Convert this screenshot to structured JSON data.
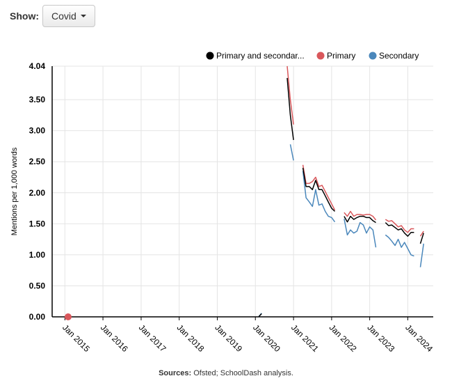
{
  "controls": {
    "show_label": "Show:",
    "dropdown_value": "Covid"
  },
  "sources": {
    "label": "Sources:",
    "text": "Ofsted; SchoolDash analysis."
  },
  "colors": {
    "all": "#000000",
    "primary": "#d9575b",
    "secondary": "#4a87bb",
    "grid": "#e4e4e4",
    "axis": "#000000"
  },
  "chart_data": {
    "type": "line",
    "title": "",
    "xlabel": "",
    "ylabel": "Mentions per 1,000 words",
    "ylim": [
      0,
      4.04
    ],
    "yticks": [
      "0.00",
      "0.50",
      "1.00",
      "1.50",
      "2.00",
      "2.50",
      "3.00",
      "3.50",
      "4.04"
    ],
    "xlim": [
      "2014-09-01",
      "2024-09-01"
    ],
    "xticks": [
      "Jan 2015",
      "Jan 2016",
      "Jan 2017",
      "Jan 2018",
      "Jan 2019",
      "Jan 2020",
      "Jan 2021",
      "Jan 2022",
      "Jan 2023",
      "Jan 2024"
    ],
    "legend_position": "top-right",
    "grid": true,
    "series": [
      {
        "name": "Primary and secondar...",
        "key": "all",
        "segments": [
          [
            [
              "2020-02-01",
              0.0
            ],
            [
              "2020-03-01",
              0.05
            ]
          ],
          [
            [
              "2020-11-01",
              3.85
            ],
            [
              "2020-12-01",
              3.25
            ],
            [
              "2021-01-01",
              2.85
            ]
          ],
          [
            [
              "2021-04-01",
              2.4
            ],
            [
              "2021-05-01",
              2.1
            ],
            [
              "2021-06-01",
              2.1
            ],
            [
              "2021-07-01",
              2.05
            ],
            [
              "2021-08-01",
              2.2
            ],
            [
              "2021-09-01",
              2.05
            ],
            [
              "2021-10-01",
              2.05
            ],
            [
              "2021-11-01",
              1.95
            ],
            [
              "2021-12-01",
              1.85
            ],
            [
              "2022-01-01",
              1.75
            ],
            [
              "2022-02-01",
              1.7
            ]
          ],
          [
            [
              "2022-05-01",
              1.62
            ],
            [
              "2022-06-01",
              1.53
            ],
            [
              "2022-07-01",
              1.62
            ],
            [
              "2022-08-01",
              1.57
            ],
            [
              "2022-09-01",
              1.6
            ],
            [
              "2022-10-01",
              1.62
            ],
            [
              "2022-11-01",
              1.62
            ],
            [
              "2022-12-01",
              1.6
            ],
            [
              "2023-01-01",
              1.6
            ],
            [
              "2023-02-01",
              1.55
            ],
            [
              "2023-03-01",
              1.52
            ]
          ],
          [
            [
              "2023-06-01",
              1.52
            ],
            [
              "2023-07-01",
              1.47
            ],
            [
              "2023-08-01",
              1.48
            ],
            [
              "2023-09-01",
              1.44
            ],
            [
              "2023-10-01",
              1.4
            ],
            [
              "2023-11-01",
              1.42
            ],
            [
              "2023-12-01",
              1.35
            ],
            [
              "2024-01-01",
              1.3
            ],
            [
              "2024-02-01",
              1.36
            ],
            [
              "2024-03-01",
              1.36
            ]
          ],
          [
            [
              "2024-05-01",
              1.18
            ],
            [
              "2024-06-01",
              1.35
            ]
          ]
        ]
      },
      {
        "name": "Primary",
        "key": "primary",
        "segments": [
          [
            [
              "2015-02-01",
              0.0
            ],
            [
              "2015-03-01",
              0.0
            ]
          ],
          [
            [
              "2020-11-01",
              4.04
            ],
            [
              "2020-12-01",
              3.5
            ],
            [
              "2021-01-01",
              3.1
            ]
          ],
          [
            [
              "2021-04-01",
              2.45
            ],
            [
              "2021-05-01",
              2.15
            ],
            [
              "2021-06-01",
              2.15
            ],
            [
              "2021-07-01",
              2.18
            ],
            [
              "2021-08-01",
              2.25
            ],
            [
              "2021-09-01",
              2.1
            ],
            [
              "2021-10-01",
              2.12
            ],
            [
              "2021-11-01",
              2.02
            ],
            [
              "2021-12-01",
              1.92
            ],
            [
              "2022-01-01",
              1.82
            ],
            [
              "2022-02-01",
              1.72
            ]
          ],
          [
            [
              "2022-05-01",
              1.68
            ],
            [
              "2022-06-01",
              1.62
            ],
            [
              "2022-07-01",
              1.7
            ],
            [
              "2022-08-01",
              1.62
            ],
            [
              "2022-09-01",
              1.65
            ],
            [
              "2022-10-01",
              1.65
            ],
            [
              "2022-11-01",
              1.64
            ],
            [
              "2022-12-01",
              1.65
            ],
            [
              "2023-01-01",
              1.65
            ],
            [
              "2023-02-01",
              1.62
            ],
            [
              "2023-03-01",
              1.56
            ]
          ],
          [
            [
              "2023-06-01",
              1.57
            ],
            [
              "2023-07-01",
              1.54
            ],
            [
              "2023-08-01",
              1.55
            ],
            [
              "2023-09-01",
              1.5
            ],
            [
              "2023-10-01",
              1.45
            ],
            [
              "2023-11-01",
              1.47
            ],
            [
              "2023-12-01",
              1.4
            ],
            [
              "2024-01-01",
              1.36
            ],
            [
              "2024-02-01",
              1.42
            ],
            [
              "2024-03-01",
              1.42
            ]
          ],
          [
            [
              "2024-05-01",
              1.3
            ],
            [
              "2024-06-01",
              1.38
            ]
          ]
        ],
        "markers": [
          [
            "2015-02-01",
            0.0
          ]
        ]
      },
      {
        "name": "Secondary",
        "key": "secondary",
        "segments": [
          [
            [
              "2020-02-01",
              0.0
            ],
            [
              "2020-03-01",
              0.06
            ]
          ],
          [
            [
              "2020-12-01",
              2.78
            ],
            [
              "2021-01-01",
              2.52
            ]
          ],
          [
            [
              "2021-04-01",
              2.35
            ],
            [
              "2021-05-01",
              1.92
            ],
            [
              "2021-06-01",
              1.85
            ],
            [
              "2021-07-01",
              1.78
            ],
            [
              "2021-08-01",
              2.05
            ],
            [
              "2021-09-01",
              1.8
            ],
            [
              "2021-10-01",
              1.82
            ],
            [
              "2021-11-01",
              1.7
            ],
            [
              "2021-12-01",
              1.62
            ],
            [
              "2022-01-01",
              1.6
            ],
            [
              "2022-02-01",
              1.53
            ]
          ],
          [
            [
              "2022-05-01",
              1.58
            ],
            [
              "2022-06-01",
              1.32
            ],
            [
              "2022-07-01",
              1.4
            ],
            [
              "2022-08-01",
              1.35
            ],
            [
              "2022-09-01",
              1.38
            ],
            [
              "2022-10-01",
              1.52
            ],
            [
              "2022-11-01",
              1.48
            ],
            [
              "2022-12-01",
              1.35
            ],
            [
              "2023-01-01",
              1.45
            ],
            [
              "2023-02-01",
              1.4
            ],
            [
              "2023-03-01",
              1.12
            ]
          ],
          [
            [
              "2023-06-01",
              1.32
            ],
            [
              "2023-07-01",
              1.28
            ],
            [
              "2023-08-01",
              1.22
            ],
            [
              "2023-09-01",
              1.15
            ],
            [
              "2023-10-01",
              1.25
            ],
            [
              "2023-11-01",
              1.12
            ],
            [
              "2023-12-01",
              1.2
            ],
            [
              "2024-01-01",
              1.1
            ],
            [
              "2024-02-01",
              1.0
            ],
            [
              "2024-03-01",
              0.98
            ]
          ],
          [
            [
              "2024-05-01",
              0.8
            ],
            [
              "2024-06-01",
              1.18
            ]
          ]
        ]
      }
    ]
  }
}
